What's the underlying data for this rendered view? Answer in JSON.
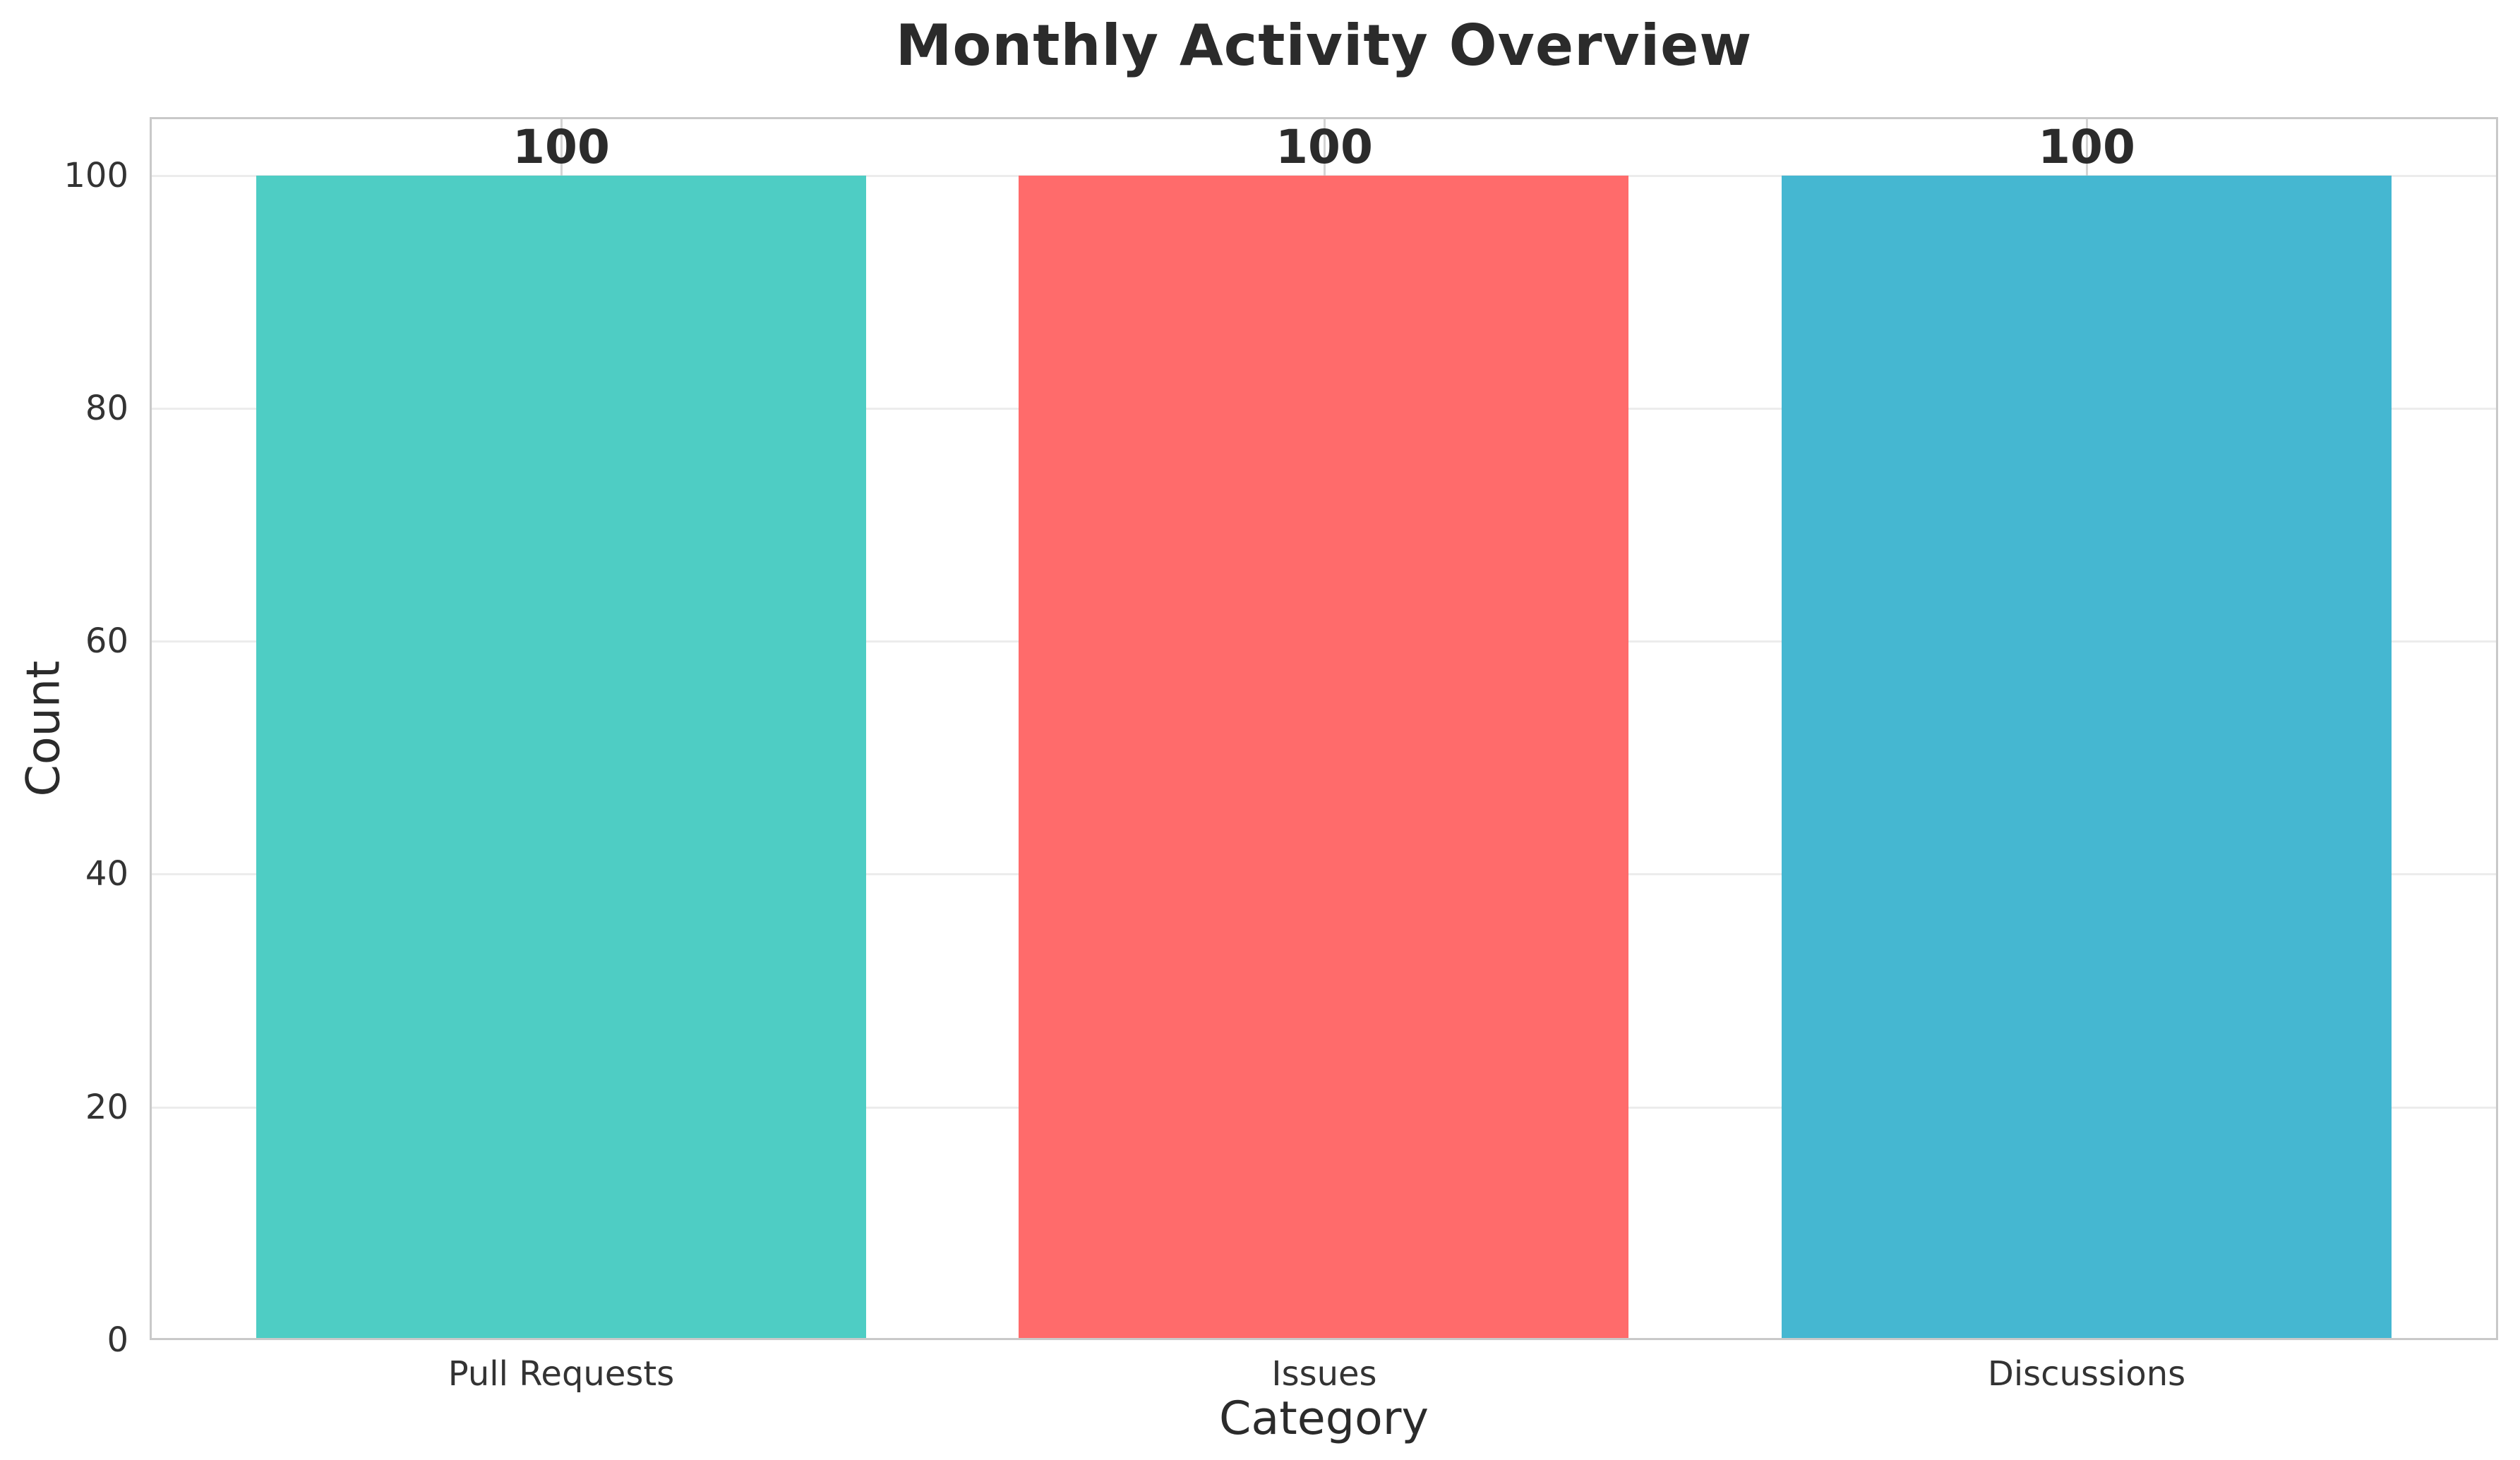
{
  "style": {
    "background": "#ffffff",
    "text_color": "#2b2b2b",
    "tick_color": "#333333",
    "spine_color": "#c9c9c9",
    "h_grid_color": "#ececec",
    "v_grid_color": "#d4d4d4"
  },
  "chart_data": {
    "type": "bar",
    "title": "Monthly Activity Overview",
    "xlabel": "Category",
    "ylabel": "Count",
    "categories": [
      "Pull Requests",
      "Issues",
      "Discussions"
    ],
    "values": [
      100,
      100,
      100
    ],
    "bar_value_labels": [
      "100",
      "100",
      "100"
    ],
    "bar_colors": [
      "#4ECDC4",
      "#FF6B6B",
      "#45B7D1"
    ],
    "ylim": [
      0,
      105
    ],
    "yticks": [
      0,
      20,
      40,
      60,
      80,
      100
    ],
    "grid": "both",
    "legend_position": "none"
  }
}
